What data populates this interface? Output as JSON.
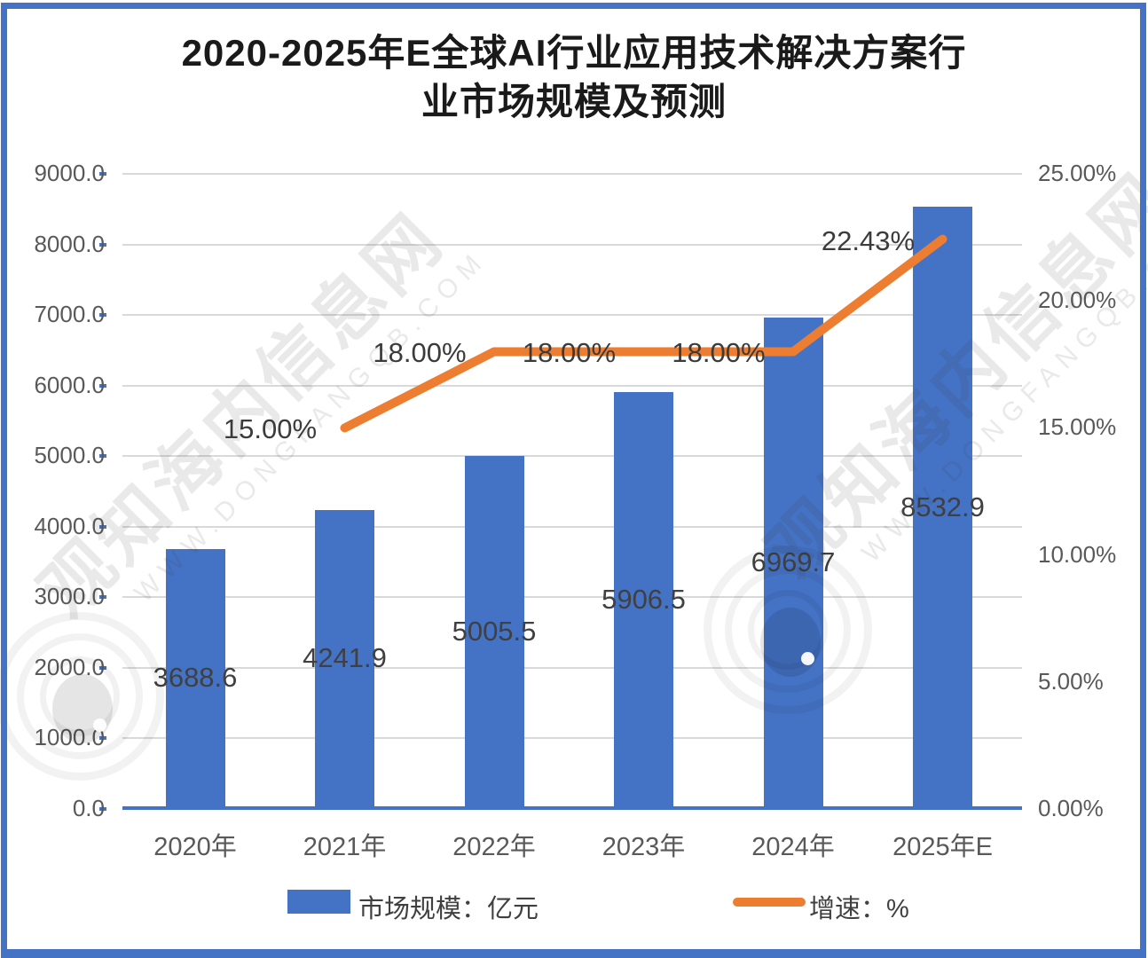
{
  "title": {
    "line1": "2020-2025年E全球AI行业应用技术解决方案行",
    "line2": "业市场规模及预测"
  },
  "chart_data": {
    "type": "bar",
    "combo": "bar+line",
    "title": "2020-2025年E全球AI行业应用技术解决方案行业市场规模及预测",
    "categories": [
      "2020年",
      "2021年",
      "2022年",
      "2023年",
      "2024年",
      "2025年E"
    ],
    "series": [
      {
        "name": "市场规模：亿元",
        "chart_type": "bar",
        "axis": "left",
        "color": "#4472C4",
        "values": [
          3688.6,
          4241.9,
          5005.5,
          5906.5,
          6969.7,
          8532.9
        ],
        "data_labels": [
          "3688.6",
          "4241.9",
          "5005.5",
          "5906.5",
          "6969.7",
          "8532.9"
        ]
      },
      {
        "name": "增速：%",
        "chart_type": "line",
        "axis": "right",
        "color": "#ED7D31",
        "values": [
          null,
          15.0,
          18.0,
          18.0,
          18.0,
          22.43
        ],
        "data_labels": [
          "",
          "15.00%",
          "18.00%",
          "18.00%",
          "18.00%",
          "22.43%"
        ]
      }
    ],
    "left_axis": {
      "min": 0,
      "max": 9000,
      "step": 1000,
      "tick_labels": [
        "0.0",
        "1000.0",
        "2000.0",
        "3000.0",
        "4000.0",
        "5000.0",
        "6000.0",
        "7000.0",
        "8000.0",
        "9000.0"
      ]
    },
    "right_axis": {
      "min": 0,
      "max": 25,
      "step": 5,
      "tick_labels": [
        "0.00%",
        "5.00%",
        "10.00%",
        "15.00%",
        "20.00%",
        "25.00%"
      ]
    },
    "grid": true,
    "legend_position": "bottom"
  },
  "legend": {
    "bar_label": "市场规模：亿元",
    "line_label": "增速：%"
  },
  "watermark": {
    "cjk": "观知海内信息网",
    "url": "WWW.DONGFANGQB.COM"
  },
  "colors": {
    "bar": "#4472C4",
    "line": "#ED7D31",
    "axis_text": "#595959",
    "data_label": "#404040",
    "gridline": "#D9D9D9",
    "border": "#4472C4",
    "background": "#FFFFFF"
  }
}
